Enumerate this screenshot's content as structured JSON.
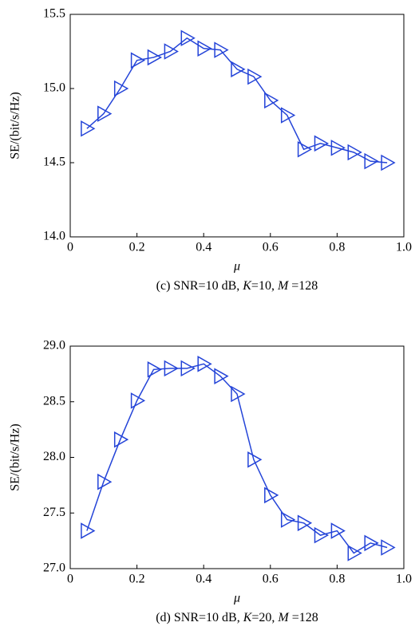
{
  "chart_data": [
    {
      "type": "line",
      "x_label": "μ",
      "y_label": "SE/(bit/s/Hz)",
      "caption": [
        "(c) SNR=10 dB, ",
        "K",
        "=10, ",
        "M",
        " =128"
      ],
      "x": [
        0.05,
        0.1,
        0.15,
        0.2,
        0.25,
        0.3,
        0.35,
        0.4,
        0.45,
        0.5,
        0.55,
        0.6,
        0.65,
        0.7,
        0.75,
        0.8,
        0.85,
        0.9,
        0.95
      ],
      "series": [
        {
          "color": "#2444d8",
          "values": [
            14.73,
            14.83,
            15.0,
            15.19,
            15.21,
            15.25,
            15.34,
            15.27,
            15.26,
            15.13,
            15.08,
            14.92,
            14.82,
            14.59,
            14.63,
            14.6,
            14.57,
            14.51,
            14.5
          ]
        }
      ],
      "xlim": [
        0,
        1
      ],
      "xticks": [
        0,
        0.2,
        0.4,
        0.6,
        0.8,
        {
          "value": 1,
          "label": "1.0"
        }
      ],
      "ylim": [
        14,
        15.5
      ],
      "yticks": [
        {
          "value": 14,
          "label": "14.0"
        },
        14.5,
        {
          "value": 15,
          "label": "15.0"
        },
        15.5
      ]
    },
    {
      "type": "line",
      "x_label": "μ",
      "y_label": "SE/(bit/s/Hz)",
      "caption": [
        "(d) SNR=10 dB, ",
        "K",
        "=20, ",
        "M",
        " =128"
      ],
      "x": [
        0.05,
        0.1,
        0.15,
        0.2,
        0.25,
        0.3,
        0.35,
        0.4,
        0.45,
        0.5,
        0.55,
        0.6,
        0.65,
        0.7,
        0.75,
        0.8,
        0.85,
        0.9,
        0.95
      ],
      "series": [
        {
          "color": "#2444d8",
          "values": [
            27.34,
            27.78,
            28.16,
            28.51,
            28.79,
            28.8,
            28.8,
            28.84,
            28.73,
            28.57,
            27.98,
            27.66,
            27.44,
            27.41,
            27.3,
            27.34,
            27.14,
            27.23,
            27.19
          ]
        }
      ],
      "xlim": [
        0,
        1
      ],
      "xticks": [
        0,
        0.2,
        0.4,
        0.6,
        0.8,
        {
          "value": 1,
          "label": "1.0"
        }
      ],
      "ylim": [
        27,
        29
      ],
      "yticks": [
        {
          "value": 27,
          "label": "27.0"
        },
        27.5,
        {
          "value": 28,
          "label": "28.0"
        },
        28.5,
        {
          "value": 29,
          "label": "29.0"
        }
      ]
    }
  ]
}
